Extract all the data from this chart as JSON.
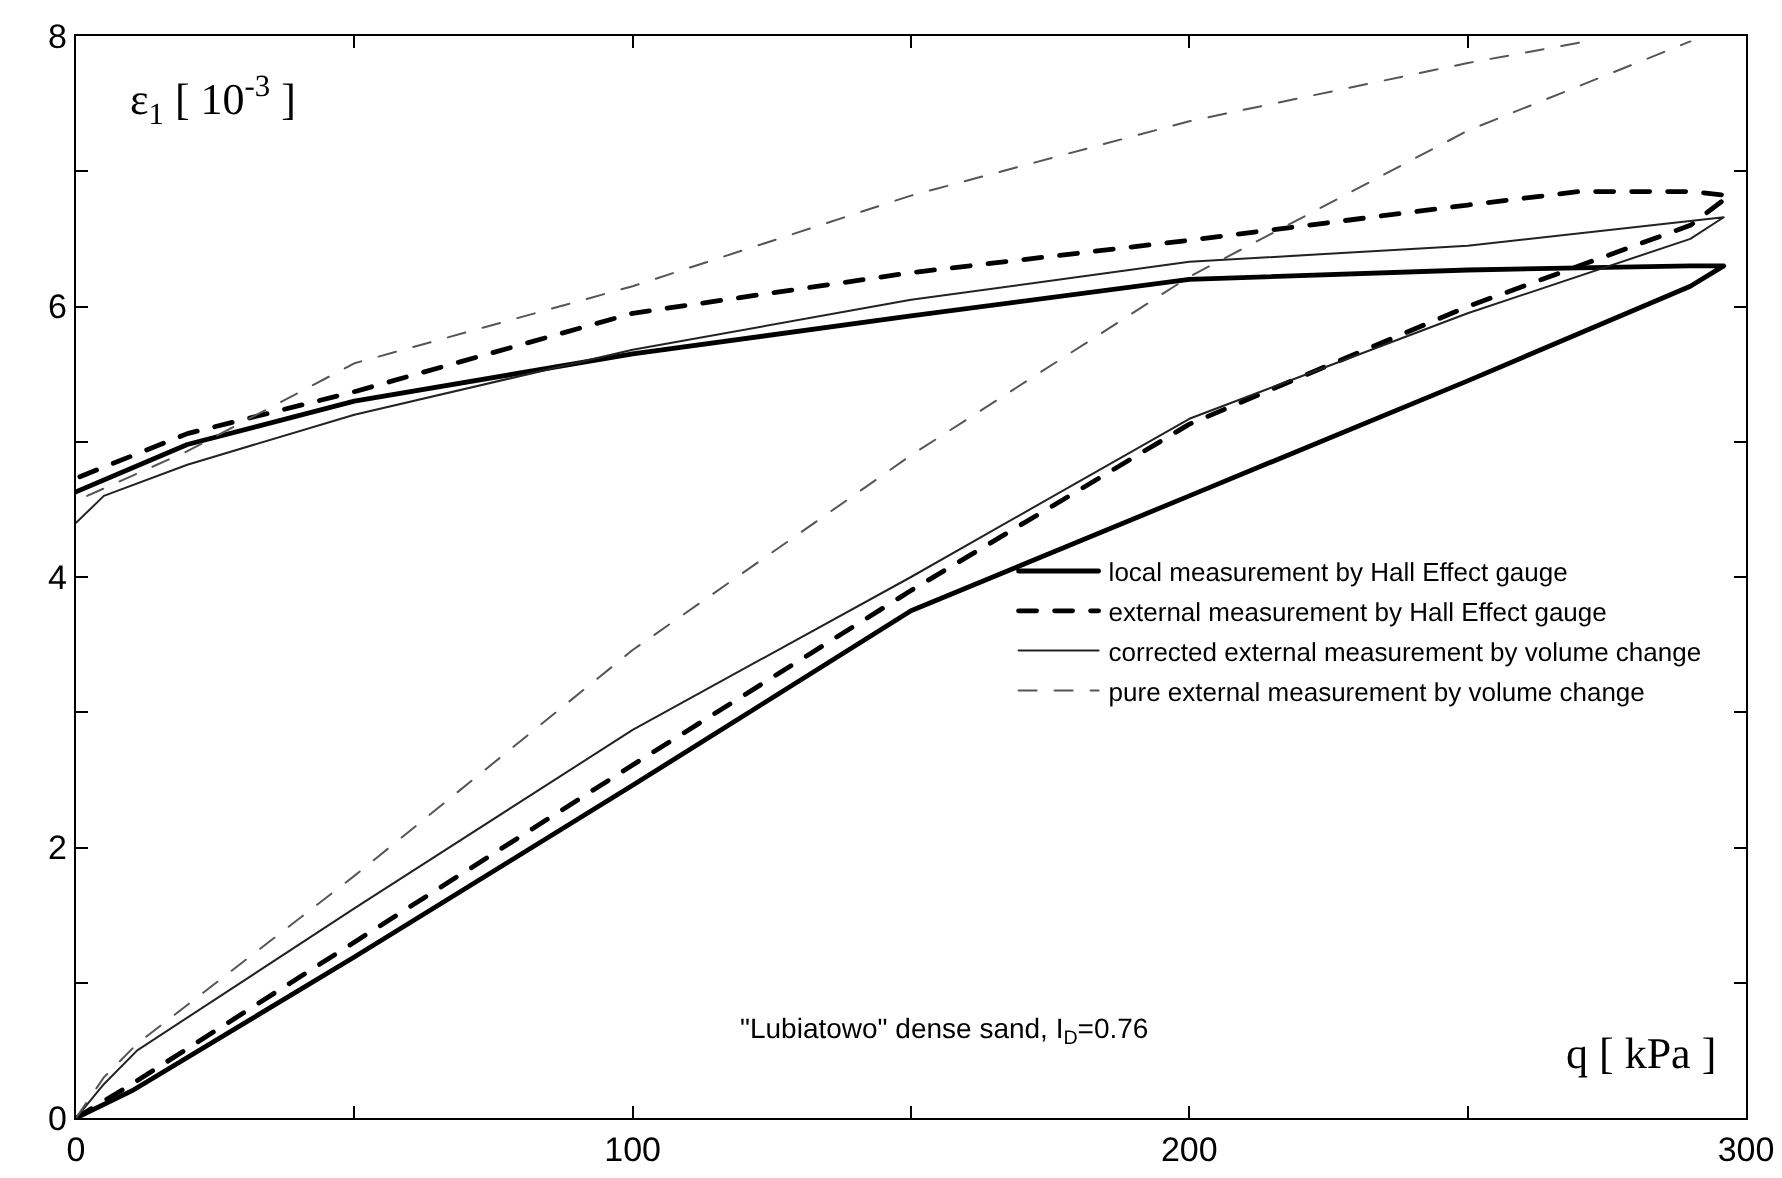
{
  "chart_data": {
    "type": "line",
    "xlabel": "q [ kPa ]",
    "ylabel": "ε$_{1}$ [ 10$^{-3}$ ]",
    "xlim": [
      0,
      300
    ],
    "xticks": [
      0,
      {
        "value": 50,
        "label": null
      },
      100,
      {
        "value": 150,
        "label": null
      },
      200,
      {
        "value": 250,
        "label": null
      },
      300
    ],
    "ylim": [
      0,
      8
    ],
    "yticks": [
      0,
      {
        "value": 1,
        "label": null
      },
      2,
      {
        "value": 3,
        "label": null
      },
      4,
      {
        "value": 5,
        "label": null
      },
      6,
      {
        "value": 7,
        "label": null
      },
      8
    ],
    "grid": false,
    "legend": "right",
    "marker": "none",
    "annotations": [
      "\"Lubiatowo\" dense sand, I$_{D}$=0.76"
    ],
    "series": [
      {
        "name": "local measurement by Hall Effect gauge",
        "color": "#000000",
        "line_style": "solid",
        "x": [
          0,
          10,
          50,
          100,
          150,
          200,
          250,
          290,
          296,
          290,
          250,
          200,
          150,
          100,
          50,
          20,
          0
        ],
        "values": [
          0,
          0.2,
          1.19,
          2.46,
          3.75,
          4.6,
          5.45,
          6.15,
          6.3,
          6.3,
          6.27,
          6.2,
          5.93,
          5.65,
          5.3,
          4.98,
          4.63
        ]
      },
      {
        "name": "external measurement by Hall Effect gauge",
        "color": "#000000",
        "line_style": "dashed",
        "x": [
          0,
          10,
          50,
          100,
          150,
          200,
          250,
          290,
          297,
          290,
          270,
          250,
          200,
          150,
          100,
          50,
          20,
          0
        ],
        "values": [
          0,
          0.25,
          1.3,
          2.61,
          3.9,
          5.13,
          6.0,
          6.6,
          6.82,
          6.85,
          6.85,
          6.75,
          6.49,
          6.25,
          5.95,
          5.37,
          5.06,
          4.73
        ]
      },
      {
        "name": "corrected external measurement by volume change",
        "color": "#222222",
        "line_style": "solid",
        "x": [
          0,
          5,
          11,
          50,
          100,
          150,
          200,
          250,
          290,
          296,
          250,
          200,
          150,
          100,
          50,
          20,
          5,
          0
        ],
        "values": [
          0,
          0.25,
          0.5,
          1.55,
          2.87,
          4.0,
          5.17,
          5.95,
          6.5,
          6.66,
          6.45,
          6.33,
          6.05,
          5.68,
          5.2,
          4.83,
          4.6,
          4.4
        ]
      },
      {
        "name": "pure external measurement by volume change",
        "color": "#555555",
        "line_style": "dashed",
        "x": [
          0,
          5,
          11,
          50,
          100,
          150,
          200,
          250,
          290,
          null,
          270,
          250,
          200,
          150,
          100,
          50,
          20,
          2
        ],
        "values": [
          0,
          0.3,
          0.55,
          1.79,
          3.46,
          4.9,
          6.22,
          7.3,
          7.96,
          null,
          7.95,
          7.8,
          7.37,
          6.82,
          6.15,
          5.58,
          4.93,
          4.6
        ]
      }
    ]
  }
}
